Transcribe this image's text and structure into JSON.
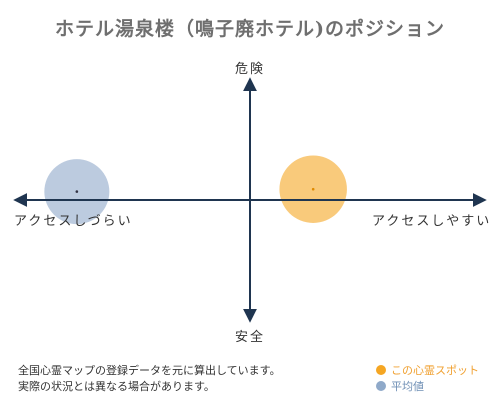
{
  "title": "ホテル湯泉楼（鳴子廃ホテル)のポジション",
  "chart_data": {
    "type": "scatter",
    "axes": {
      "top": "危険",
      "bottom": "安全",
      "left": "アクセスしづらい",
      "right": "アクセスしやすい"
    },
    "xlim": [
      -1,
      1
    ],
    "ylim": [
      -1,
      1
    ],
    "points": [
      {
        "x": 0.27,
        "y": 0.09,
        "size": 0.27,
        "color": "#f5a623"
      },
      {
        "x": -0.74,
        "y": 0.07,
        "size": 0.26,
        "color": "#8fa9c9"
      }
    ]
  },
  "notes": [
    "全国心霊マップの登録データを元に算出しています。",
    "実際の状況とは異なる場合があります。"
  ],
  "legend": [
    {
      "label": "この心霊スポット",
      "color": "#f5a623"
    },
    {
      "label": "平均値",
      "color": "#8fa9c9"
    }
  ]
}
